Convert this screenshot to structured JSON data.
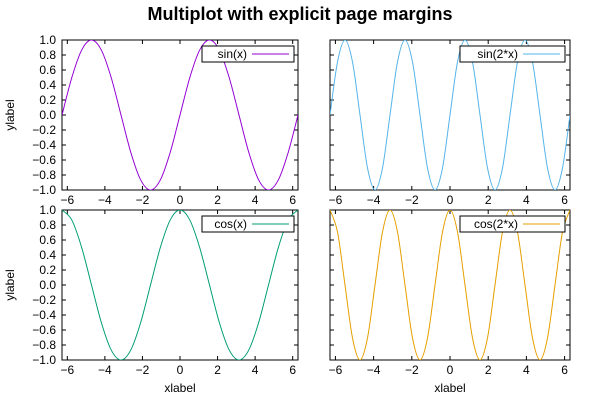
{
  "chart_title": "Multiplot with explicit page margins",
  "chart_data": [
    {
      "type": "line",
      "xlabel": "",
      "ylabel": "ylabel",
      "xlim": [
        -6.2832,
        6.2832
      ],
      "ylim": [
        -1.0,
        1.0
      ],
      "xticks": [
        "−6",
        "−4",
        "−2",
        "0",
        "2",
        "4",
        "6"
      ],
      "xtick_values": [
        -6,
        -4,
        -2,
        0,
        2,
        4,
        6
      ],
      "yticks": [
        "1.0",
        "0.8",
        "0.6",
        "0.4",
        "0.2",
        "0.0",
        "−0.2",
        "−0.4",
        "−0.6",
        "−0.8",
        "−1.0"
      ],
      "ytick_values": [
        1.0,
        0.8,
        0.6,
        0.4,
        0.2,
        0.0,
        -0.2,
        -0.4,
        -0.6,
        -0.8,
        -1.0
      ],
      "show_xtick_labels": true,
      "show_ytick_labels": true,
      "legend_position": "top-right",
      "series": [
        {
          "name": "sin(x)",
          "color": "#9400d3",
          "x": [
            -6.2832,
            -5.7596,
            -5.236,
            -4.7124,
            -4.1888,
            -3.6652,
            -3.1416,
            -2.618,
            -2.0944,
            -1.5708,
            -1.0472,
            -0.5236,
            0.0,
            0.5236,
            1.0472,
            1.5708,
            2.0944,
            2.618,
            3.1416,
            3.6652,
            4.1888,
            4.7124,
            5.236,
            5.7596,
            6.2832
          ],
          "y": [
            0.0,
            0.5,
            0.866,
            1.0,
            0.866,
            0.5,
            0.0,
            -0.5,
            -0.866,
            -1.0,
            -0.866,
            -0.5,
            0.0,
            0.5,
            0.866,
            1.0,
            0.866,
            0.5,
            0.0,
            -0.5,
            -0.866,
            -1.0,
            -0.866,
            -0.5,
            0.0
          ]
        }
      ]
    },
    {
      "type": "line",
      "xlabel": "",
      "ylabel": "",
      "xlim": [
        -6.2832,
        6.2832
      ],
      "ylim": [
        -1.0,
        1.0
      ],
      "xticks": [
        "−6",
        "−4",
        "−2",
        "0",
        "2",
        "4",
        "6"
      ],
      "xtick_values": [
        -6,
        -4,
        -2,
        0,
        2,
        4,
        6
      ],
      "yticks": [],
      "ytick_values": [
        1.0,
        0.8,
        0.6,
        0.4,
        0.2,
        0.0,
        -0.2,
        -0.4,
        -0.6,
        -0.8,
        -1.0
      ],
      "show_xtick_labels": true,
      "show_ytick_labels": false,
      "legend_position": "top-right",
      "series": [
        {
          "name": "sin(2*x)",
          "color": "#56b4e9",
          "x": [
            -6.2832,
            -5.8905,
            -5.4978,
            -5.1051,
            -4.7124,
            -4.3197,
            -3.927,
            -3.5343,
            -3.1416,
            -2.7489,
            -2.3562,
            -1.9635,
            -1.5708,
            -1.1781,
            -0.7854,
            -0.3927,
            0.0,
            0.3927,
            0.7854,
            1.1781,
            1.5708,
            1.9635,
            2.3562,
            2.7489,
            3.1416,
            3.5343,
            3.927,
            4.3197,
            4.7124,
            5.1051,
            5.4978,
            5.8905,
            6.2832
          ],
          "y": [
            0.0,
            0.7071,
            1.0,
            0.7071,
            0.0,
            -0.7071,
            -1.0,
            -0.7071,
            0.0,
            0.7071,
            1.0,
            0.7071,
            0.0,
            -0.7071,
            -1.0,
            -0.7071,
            0.0,
            0.7071,
            1.0,
            0.7071,
            0.0,
            -0.7071,
            -1.0,
            -0.7071,
            0.0,
            0.7071,
            1.0,
            0.7071,
            0.0,
            -0.7071,
            -1.0,
            -0.7071,
            0.0
          ]
        }
      ]
    },
    {
      "type": "line",
      "xlabel": "xlabel",
      "ylabel": "ylabel",
      "xlim": [
        -6.2832,
        6.2832
      ],
      "ylim": [
        -1.0,
        1.0
      ],
      "xticks": [
        "−6",
        "−4",
        "−2",
        "0",
        "2",
        "4",
        "6"
      ],
      "xtick_values": [
        -6,
        -4,
        -2,
        0,
        2,
        4,
        6
      ],
      "yticks": [
        "1.0",
        "0.8",
        "0.6",
        "0.4",
        "0.2",
        "0.0",
        "−0.2",
        "−0.4",
        "−0.6",
        "−0.8",
        "−1.0"
      ],
      "ytick_values": [
        1.0,
        0.8,
        0.6,
        0.4,
        0.2,
        0.0,
        -0.2,
        -0.4,
        -0.6,
        -0.8,
        -1.0
      ],
      "show_xtick_labels": true,
      "show_ytick_labels": true,
      "legend_position": "top-right",
      "series": [
        {
          "name": "cos(x)",
          "color": "#009e73",
          "x": [
            -6.2832,
            -5.7596,
            -5.236,
            -4.7124,
            -4.1888,
            -3.6652,
            -3.1416,
            -2.618,
            -2.0944,
            -1.5708,
            -1.0472,
            -0.5236,
            0.0,
            0.5236,
            1.0472,
            1.5708,
            2.0944,
            2.618,
            3.1416,
            3.6652,
            4.1888,
            4.7124,
            5.236,
            5.7596,
            6.2832
          ],
          "y": [
            1.0,
            0.866,
            0.5,
            0.0,
            -0.5,
            -0.866,
            -1.0,
            -0.866,
            -0.5,
            0.0,
            0.5,
            0.866,
            1.0,
            0.866,
            0.5,
            0.0,
            -0.5,
            -0.866,
            -1.0,
            -0.866,
            -0.5,
            0.0,
            0.5,
            0.866,
            1.0
          ]
        }
      ]
    },
    {
      "type": "line",
      "xlabel": "xlabel",
      "ylabel": "",
      "xlim": [
        -6.2832,
        6.2832
      ],
      "ylim": [
        -1.0,
        1.0
      ],
      "xticks": [
        "−6",
        "−4",
        "−2",
        "0",
        "2",
        "4",
        "6"
      ],
      "xtick_values": [
        -6,
        -4,
        -2,
        0,
        2,
        4,
        6
      ],
      "yticks": [],
      "ytick_values": [
        1.0,
        0.8,
        0.6,
        0.4,
        0.2,
        0.0,
        -0.2,
        -0.4,
        -0.6,
        -0.8,
        -1.0
      ],
      "show_xtick_labels": true,
      "show_ytick_labels": false,
      "legend_position": "top-right",
      "series": [
        {
          "name": "cos(2*x)",
          "color": "#e69f00",
          "x": [
            -6.2832,
            -5.8905,
            -5.4978,
            -5.1051,
            -4.7124,
            -4.3197,
            -3.927,
            -3.5343,
            -3.1416,
            -2.7489,
            -2.3562,
            -1.9635,
            -1.5708,
            -1.1781,
            -0.7854,
            -0.3927,
            0.0,
            0.3927,
            0.7854,
            1.1781,
            1.5708,
            1.9635,
            2.3562,
            2.7489,
            3.1416,
            3.5343,
            3.927,
            4.3197,
            4.7124,
            5.1051,
            5.4978,
            5.8905,
            6.2832
          ],
          "y": [
            1.0,
            0.7071,
            0.0,
            -0.7071,
            -1.0,
            -0.7071,
            0.0,
            0.7071,
            1.0,
            0.7071,
            0.0,
            -0.7071,
            -1.0,
            -0.7071,
            0.0,
            0.7071,
            1.0,
            0.7071,
            0.0,
            -0.7071,
            -1.0,
            -0.7071,
            0.0,
            0.7071,
            1.0,
            0.7071,
            0.0,
            -0.7071,
            -1.0,
            -0.7071,
            0.0,
            0.7071,
            1.0
          ]
        }
      ]
    }
  ]
}
